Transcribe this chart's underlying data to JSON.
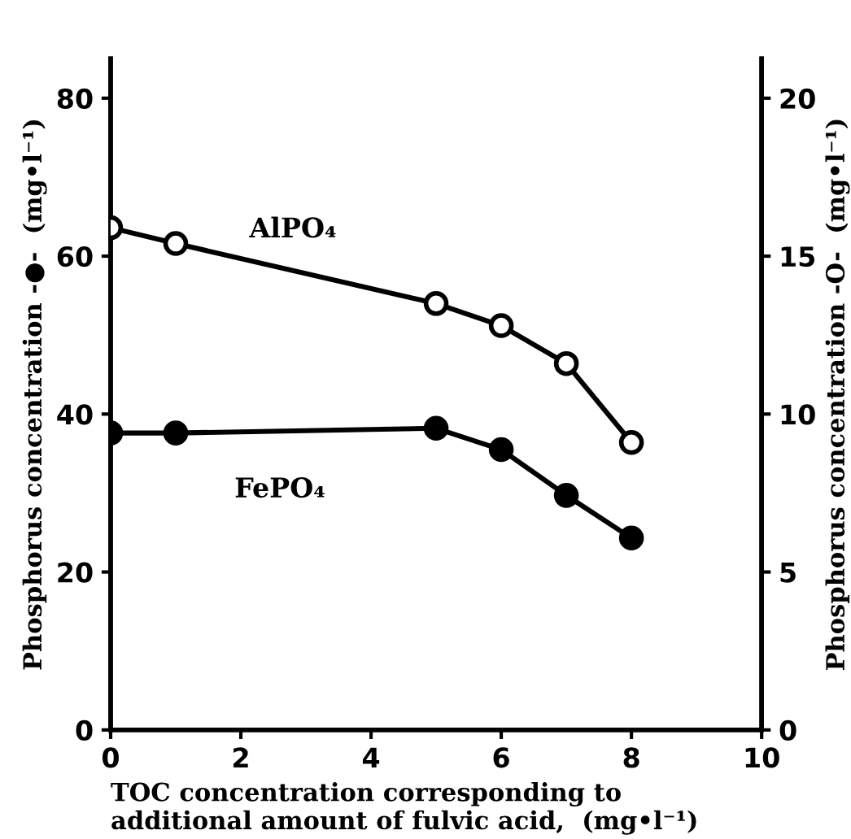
{
  "chart_data": {
    "type": "line",
    "xlabel": "TOC concentration corresponding to\nadditional amount of fulvic acid,  (mg•l⁻¹)",
    "ylabel": "Phosphorus concentration -●-  (mg•l⁻¹)",
    "y2label": "Phosphorus concentration -O-  (mg•l⁻¹)",
    "xlim": [
      0,
      10
    ],
    "xticks": [
      0,
      2,
      4,
      6,
      8,
      10
    ],
    "ylim": [
      0,
      85
    ],
    "yticks": [
      0,
      20,
      40,
      60,
      80
    ],
    "y2lim": [
      0,
      21.25
    ],
    "y2ticks": [
      0,
      5,
      10,
      15,
      20
    ],
    "grid": false,
    "legend": false,
    "line_style": "solid",
    "series": [
      {
        "name": "AlPO₄",
        "color": "#000000",
        "axis": "y2",
        "marker": "circle",
        "x": [
          0,
          1,
          5,
          6,
          7,
          8
        ],
        "values": [
          15.9,
          15.4,
          13.5,
          12.8,
          11.6,
          9.1
        ]
      },
      {
        "name": "FePO₄",
        "color": "#000000",
        "axis": "y",
        "marker": "circle",
        "x": [
          0,
          1,
          5,
          6,
          7,
          8
        ],
        "values": [
          37.6,
          37.6,
          38.2,
          35.5,
          29.7,
          24.3
        ]
      }
    ]
  }
}
